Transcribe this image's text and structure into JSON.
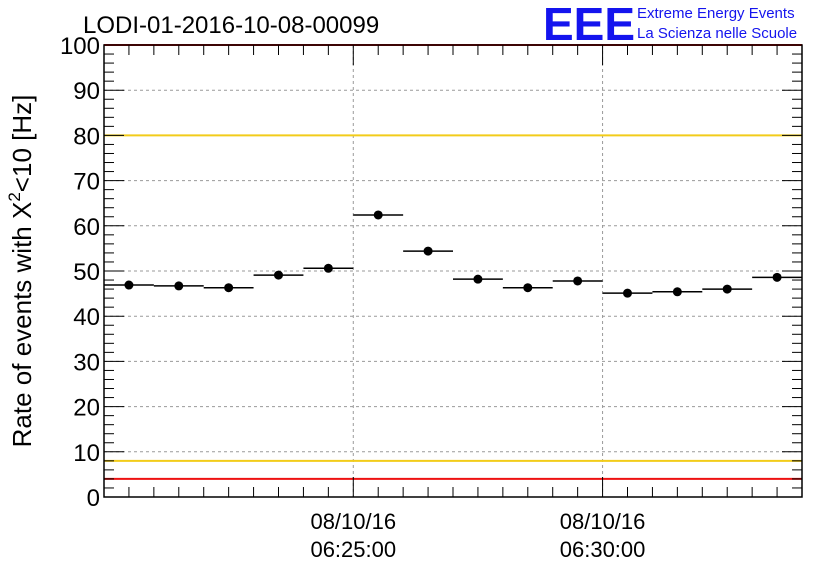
{
  "chart_data": {
    "type": "scatter",
    "title": "LODI-01-2016-10-08-00099",
    "ylabel_main": "Rate of events with X",
    "ylabel_sup": "2",
    "ylabel_tail": "<10 [Hz]",
    "ylim": [
      0,
      100
    ],
    "yticks": [
      0,
      10,
      20,
      30,
      40,
      50,
      60,
      70,
      80,
      90,
      100
    ],
    "ytick_labels": [
      "0",
      "10",
      "20",
      "30",
      "40",
      "50",
      "60",
      "70",
      "80",
      "90",
      "100"
    ],
    "x_unit": "minutes from 06:20:00",
    "xlim": [
      0,
      14
    ],
    "xticks": [
      {
        "value": 5,
        "date": "08/10/16",
        "time": "06:25:00"
      },
      {
        "value": 10,
        "date": "08/10/16",
        "time": "06:30:00"
      }
    ],
    "bin_width_min": 1,
    "series": [
      {
        "name": "rate",
        "x": [
          0.5,
          1.5,
          2.5,
          3.5,
          4.5,
          5.5,
          6.5,
          7.5,
          8.5,
          9.5,
          10.5,
          11.5,
          12.5,
          13.5
        ],
        "values": [
          46.9,
          46.7,
          46.3,
          49.1,
          50.6,
          62.4,
          54.4,
          48.2,
          46.3,
          47.8,
          45.1,
          45.4,
          46.0,
          48.6
        ]
      }
    ],
    "reference_lines": [
      {
        "name": "upper-red",
        "value": 100,
        "color": "#ee1111"
      },
      {
        "name": "upper-yellow",
        "value": 80,
        "color": "#f2cc1a"
      },
      {
        "name": "lower-yellow",
        "value": 8,
        "color": "#f2cc1a"
      },
      {
        "name": "lower-red",
        "value": 4,
        "color": "#ee1111"
      }
    ],
    "grid": true
  },
  "logo": {
    "mark": "EEE",
    "line1": "Extreme Energy Events",
    "line2": "La Scienza nelle Scuole",
    "color": "#1414ee"
  }
}
